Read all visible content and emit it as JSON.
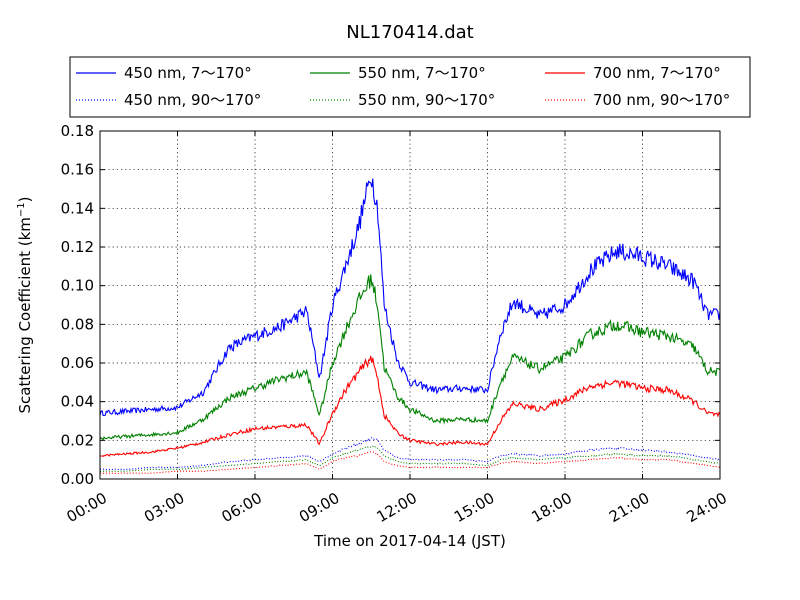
{
  "chart_data": {
    "type": "line",
    "title": "NL170414.dat",
    "xlabel": "Time on 2017-04-14 (JST)",
    "ylabel": "Scattering Coefficient (km",
    "ylabel_sup": "−1",
    "ylabel_close": ")",
    "xlim": [
      "00:00",
      "24:00"
    ],
    "ylim": [
      0.0,
      0.18
    ],
    "x_ticks": [
      "00:00",
      "03:00",
      "06:00",
      "09:00",
      "12:00",
      "15:00",
      "18:00",
      "21:00",
      "24:00"
    ],
    "y_ticks": [
      "0.00",
      "0.02",
      "0.04",
      "0.06",
      "0.08",
      "0.10",
      "0.12",
      "0.14",
      "0.16",
      "0.18"
    ],
    "grid": true,
    "legend_position": "top",
    "x": [
      "00:00",
      "01:00",
      "02:00",
      "03:00",
      "04:00",
      "05:00",
      "06:00",
      "07:00",
      "08:00",
      "08:30",
      "09:00",
      "09:30",
      "10:00",
      "10:30",
      "10:45",
      "11:00",
      "11:30",
      "12:00",
      "13:00",
      "14:00",
      "15:00",
      "15:30",
      "16:00",
      "17:00",
      "18:00",
      "19:00",
      "20:00",
      "21:00",
      "22:00",
      "23:00",
      "23:30",
      "24:00"
    ],
    "series": [
      {
        "name": "450 nm, 7～170°",
        "color": "#0000ff",
        "style": "solid",
        "values": [
          0.034,
          0.035,
          0.036,
          0.037,
          0.045,
          0.068,
          0.074,
          0.079,
          0.087,
          0.052,
          0.09,
          0.11,
          0.13,
          0.158,
          0.14,
          0.09,
          0.062,
          0.05,
          0.046,
          0.047,
          0.046,
          0.075,
          0.092,
          0.084,
          0.09,
          0.108,
          0.118,
          0.115,
          0.11,
          0.102,
          0.085,
          0.085
        ]
      },
      {
        "name": "550 nm, 7～170°",
        "color": "#008000",
        "style": "solid",
        "values": [
          0.021,
          0.022,
          0.023,
          0.024,
          0.031,
          0.042,
          0.047,
          0.052,
          0.055,
          0.033,
          0.06,
          0.077,
          0.092,
          0.104,
          0.09,
          0.058,
          0.043,
          0.036,
          0.03,
          0.031,
          0.03,
          0.05,
          0.063,
          0.057,
          0.063,
          0.075,
          0.08,
          0.076,
          0.074,
          0.068,
          0.056,
          0.055
        ]
      },
      {
        "name": "700 nm, 7～170°",
        "color": "#ff0000",
        "style": "solid",
        "values": [
          0.012,
          0.013,
          0.014,
          0.016,
          0.019,
          0.023,
          0.026,
          0.027,
          0.028,
          0.018,
          0.034,
          0.046,
          0.055,
          0.063,
          0.052,
          0.033,
          0.024,
          0.02,
          0.018,
          0.019,
          0.018,
          0.03,
          0.039,
          0.036,
          0.041,
          0.048,
          0.05,
          0.047,
          0.046,
          0.04,
          0.034,
          0.033
        ]
      },
      {
        "name": "450 nm, 90～170°",
        "color": "#0000ff",
        "style": "dotted",
        "values": [
          0.005,
          0.005,
          0.006,
          0.006,
          0.007,
          0.009,
          0.01,
          0.011,
          0.012,
          0.009,
          0.013,
          0.016,
          0.018,
          0.021,
          0.02,
          0.015,
          0.011,
          0.01,
          0.01,
          0.01,
          0.009,
          0.012,
          0.013,
          0.012,
          0.013,
          0.015,
          0.016,
          0.015,
          0.014,
          0.012,
          0.011,
          0.01
        ]
      },
      {
        "name": "550 nm, 90～170°",
        "color": "#008000",
        "style": "dotted",
        "values": [
          0.004,
          0.004,
          0.005,
          0.005,
          0.006,
          0.007,
          0.008,
          0.009,
          0.01,
          0.007,
          0.011,
          0.013,
          0.015,
          0.017,
          0.016,
          0.012,
          0.009,
          0.008,
          0.008,
          0.008,
          0.007,
          0.01,
          0.011,
          0.01,
          0.011,
          0.012,
          0.013,
          0.012,
          0.012,
          0.01,
          0.009,
          0.008
        ]
      },
      {
        "name": "700 nm, 90～170°",
        "color": "#ff0000",
        "style": "dotted",
        "values": [
          0.003,
          0.003,
          0.003,
          0.004,
          0.004,
          0.005,
          0.006,
          0.007,
          0.008,
          0.005,
          0.009,
          0.011,
          0.012,
          0.014,
          0.013,
          0.009,
          0.007,
          0.006,
          0.006,
          0.006,
          0.006,
          0.008,
          0.009,
          0.008,
          0.009,
          0.01,
          0.011,
          0.01,
          0.01,
          0.008,
          0.007,
          0.006
        ]
      }
    ]
  }
}
